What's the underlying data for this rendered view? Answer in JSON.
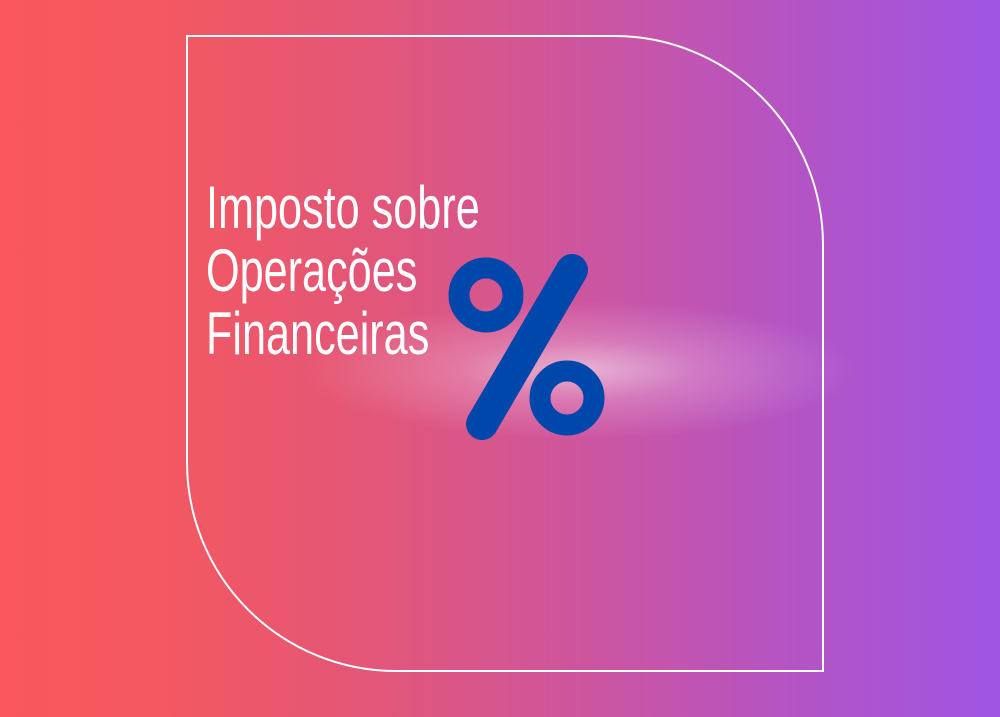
{
  "title_lines": [
    "Imposto sobre",
    "Operações",
    "Financeiras"
  ],
  "icon": "percent-icon",
  "colors": {
    "background_left": "#fa575e",
    "background_right": "#9f55e3",
    "percent_symbol": "#0047ab",
    "frame": "#ffffff",
    "text": "#ffffff"
  }
}
